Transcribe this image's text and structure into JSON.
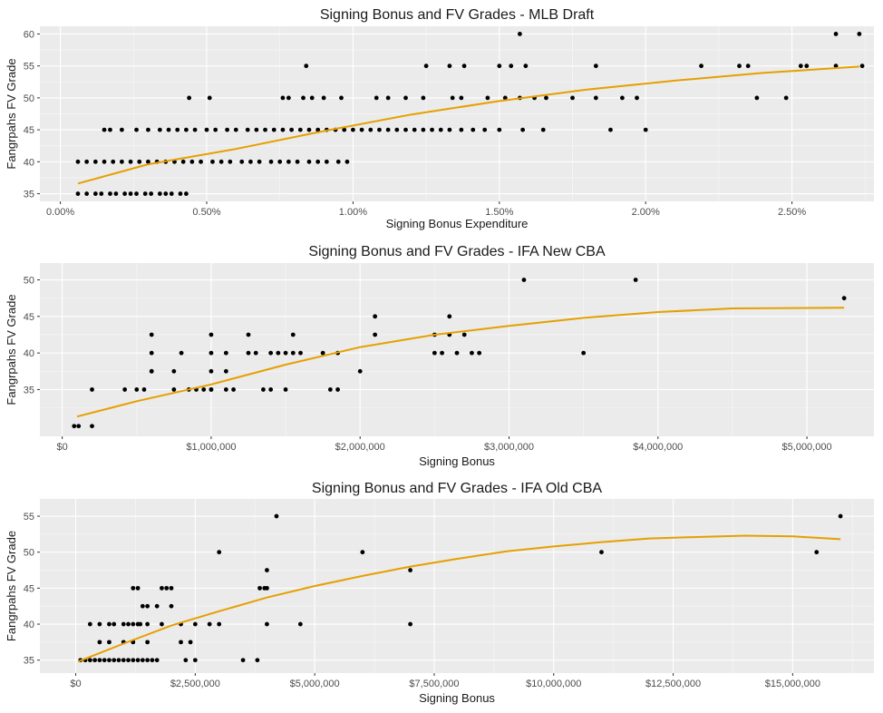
{
  "colors": {
    "panel": "#EBEBEB",
    "grid_major": "#FFFFFF",
    "grid_minor": "#F5F5F5",
    "point": "#000000",
    "trend": "#E69F00",
    "tick_text": "#4D4D4D"
  },
  "chart_data": [
    {
      "type": "scatter",
      "title": "Signing Bonus and FV Grades - MLB Draft",
      "xlabel": "Signing Bonus Expenditure",
      "ylabel": "Fangrpahs FV Grade",
      "xlim": [
        -0.0007,
        0.0278
      ],
      "ylim": [
        33.8,
        61.2
      ],
      "xticks": [
        0,
        0.005,
        0.01,
        0.015,
        0.02,
        0.025
      ],
      "xtick_labels": [
        "0.00%",
        "0.50%",
        "1.00%",
        "1.50%",
        "2.00%",
        "2.50%"
      ],
      "yticks": [
        35,
        40,
        45,
        50,
        55,
        60
      ],
      "ytick_labels": [
        "35",
        "40",
        "45",
        "50",
        "55",
        "60"
      ],
      "grid": true,
      "trend": {
        "x": [
          0.0006,
          0.003,
          0.006,
          0.009,
          0.012,
          0.015,
          0.018,
          0.021,
          0.024,
          0.0273
        ],
        "y": [
          36.6,
          39.6,
          42.0,
          44.8,
          47.4,
          49.5,
          51.3,
          52.7,
          53.9,
          54.9
        ]
      },
      "points": {
        "x": [
          0.0006,
          0.0009,
          0.0012,
          0.0014,
          0.0017,
          0.0019,
          0.0022,
          0.0024,
          0.0026,
          0.0029,
          0.0031,
          0.0034,
          0.0036,
          0.0038,
          0.0041,
          0.0043,
          0.0006,
          0.0009,
          0.0012,
          0.0015,
          0.0018,
          0.0021,
          0.0024,
          0.0027,
          0.003,
          0.0033,
          0.0036,
          0.0039,
          0.0042,
          0.0045,
          0.0048,
          0.0052,
          0.0055,
          0.0058,
          0.0062,
          0.0065,
          0.0068,
          0.0072,
          0.0075,
          0.0078,
          0.0081,
          0.0085,
          0.0088,
          0.0091,
          0.0095,
          0.0098,
          0.0015,
          0.0017,
          0.0021,
          0.0026,
          0.003,
          0.0034,
          0.0037,
          0.004,
          0.0043,
          0.0046,
          0.005,
          0.0053,
          0.0057,
          0.006,
          0.0064,
          0.0067,
          0.007,
          0.0073,
          0.0076,
          0.0079,
          0.0082,
          0.0085,
          0.0088,
          0.0091,
          0.0094,
          0.0097,
          0.01,
          0.0103,
          0.0106,
          0.0109,
          0.0112,
          0.0115,
          0.0118,
          0.0121,
          0.0124,
          0.0127,
          0.013,
          0.0133,
          0.0137,
          0.0141,
          0.0145,
          0.015,
          0.0158,
          0.0165,
          0.0188,
          0.02,
          0.0044,
          0.0051,
          0.0076,
          0.0078,
          0.0083,
          0.0086,
          0.009,
          0.0096,
          0.0108,
          0.0112,
          0.0118,
          0.0124,
          0.0134,
          0.0137,
          0.0146,
          0.0152,
          0.0157,
          0.0162,
          0.0166,
          0.0175,
          0.0183,
          0.0192,
          0.0197,
          0.0238,
          0.0248,
          0.0084,
          0.0125,
          0.0133,
          0.0138,
          0.015,
          0.0154,
          0.0159,
          0.0183,
          0.0219,
          0.0232,
          0.0235,
          0.0253,
          0.0255,
          0.0265,
          0.0274,
          0.0157,
          0.0265,
          0.0273
        ],
        "y": [
          35,
          35,
          35,
          35,
          35,
          35,
          35,
          35,
          35,
          35,
          35,
          35,
          35,
          35,
          35,
          35,
          40,
          40,
          40,
          40,
          40,
          40,
          40,
          40,
          40,
          40,
          40,
          40,
          40,
          40,
          40,
          40,
          40,
          40,
          40,
          40,
          40,
          40,
          40,
          40,
          40,
          40,
          40,
          40,
          40,
          40,
          45,
          45,
          45,
          45,
          45,
          45,
          45,
          45,
          45,
          45,
          45,
          45,
          45,
          45,
          45,
          45,
          45,
          45,
          45,
          45,
          45,
          45,
          45,
          45,
          45,
          45,
          45,
          45,
          45,
          45,
          45,
          45,
          45,
          45,
          45,
          45,
          45,
          45,
          45,
          45,
          45,
          45,
          45,
          45,
          45,
          45,
          50,
          50,
          50,
          50,
          50,
          50,
          50,
          50,
          50,
          50,
          50,
          50,
          50,
          50,
          50,
          50,
          50,
          50,
          50,
          50,
          50,
          50,
          50,
          50,
          50,
          55,
          55,
          55,
          55,
          55,
          55,
          55,
          55,
          55,
          55,
          55,
          55,
          55,
          55,
          55,
          60,
          60,
          60
        ]
      }
    },
    {
      "type": "scatter",
      "title": "Signing Bonus and FV Grades - IFA New CBA",
      "xlabel": "Signing Bonus",
      "ylabel": "Fangrpahs FV Grade",
      "xlim": [
        -150000,
        5450000
      ],
      "ylim": [
        28.6,
        52.3
      ],
      "xticks": [
        0,
        1000000,
        2000000,
        3000000,
        4000000,
        5000000
      ],
      "xtick_labels": [
        "$0",
        "$1,000,000",
        "$2,000,000",
        "$3,000,000",
        "$4,000,000",
        "$5,000,000"
      ],
      "yticks": [
        35,
        40,
        45,
        50
      ],
      "ytick_labels": [
        "35",
        "40",
        "45",
        "50"
      ],
      "grid": true,
      "trend": {
        "x": [
          100000,
          500000,
          1000000,
          1500000,
          2000000,
          2500000,
          3000000,
          3500000,
          4000000,
          4500000,
          5250000
        ],
        "y": [
          31.3,
          33.4,
          35.7,
          38.4,
          40.8,
          42.5,
          43.7,
          44.8,
          45.6,
          46.1,
          46.2
        ]
      },
      "points": {
        "x": [
          80000,
          110000,
          200000,
          200000,
          420000,
          500000,
          550000,
          600000,
          600000,
          600000,
          600000,
          750000,
          750000,
          800000,
          850000,
          900000,
          950000,
          1000000,
          1000000,
          1000000,
          1000000,
          1000000,
          1100000,
          1100000,
          1100000,
          1150000,
          1250000,
          1250000,
          1300000,
          1350000,
          1400000,
          1400000,
          1450000,
          1500000,
          1500000,
          1550000,
          1550000,
          1600000,
          1750000,
          1800000,
          1850000,
          1850000,
          2000000,
          2100000,
          2100000,
          2500000,
          2500000,
          2550000,
          2600000,
          2600000,
          2650000,
          2700000,
          2750000,
          2800000,
          3100000,
          3500000,
          3850000,
          5250000
        ],
        "y": [
          30,
          30,
          30,
          35,
          35,
          35,
          35,
          37.5,
          40,
          42.5,
          37.5,
          37.5,
          35,
          40,
          35,
          35,
          35,
          35,
          37.5,
          40,
          42.5,
          35,
          37.5,
          40,
          35,
          35,
          40,
          42.5,
          40,
          35,
          40,
          35,
          40,
          35,
          40,
          40,
          42.5,
          40,
          40,
          35,
          40,
          35,
          37.5,
          42.5,
          45,
          40,
          42.5,
          40,
          42.5,
          45,
          40,
          42.5,
          40,
          40,
          50,
          40,
          50,
          47.5
        ]
      }
    },
    {
      "type": "scatter",
      "title": "Signing Bonus and FV Grades - IFA Old CBA",
      "xlabel": "Signing Bonus",
      "ylabel": "Fangrpahs FV Grade",
      "xlim": [
        -750000,
        16700000
      ],
      "ylim": [
        33.2,
        57.4
      ],
      "xticks": [
        0,
        2500000,
        5000000,
        7500000,
        10000000,
        12500000,
        15000000
      ],
      "xtick_labels": [
        "$0",
        "$2,500,000",
        "$5,000,000",
        "$7,500,000",
        "$10,000,000",
        "$12,500,000",
        "$15,000,000"
      ],
      "yticks": [
        35,
        40,
        45,
        50,
        55
      ],
      "ytick_labels": [
        "35",
        "40",
        "45",
        "50",
        "55"
      ],
      "grid": true,
      "trend": {
        "x": [
          50000,
          1000000,
          2000000,
          3000000,
          4000000,
          5000000,
          6000000,
          7000000,
          8000000,
          9000000,
          10000000,
          11000000,
          12000000,
          13000000,
          14000000,
          15000000,
          16000000
        ],
        "y": [
          34.8,
          37.3,
          39.8,
          41.8,
          43.7,
          45.3,
          46.7,
          48.0,
          49.1,
          50.1,
          50.8,
          51.4,
          51.9,
          52.1,
          52.3,
          52.2,
          51.8
        ]
      },
      "points": {
        "x": [
          100000,
          200000,
          300000,
          400000,
          500000,
          600000,
          700000,
          800000,
          900000,
          1000000,
          1100000,
          1200000,
          1300000,
          1400000,
          1500000,
          1600000,
          1700000,
          2300000,
          2500000,
          3500000,
          3800000,
          300000,
          500000,
          700000,
          800000,
          1000000,
          1100000,
          1200000,
          1300000,
          1350000,
          1500000,
          1800000,
          2200000,
          2500000,
          2800000,
          3000000,
          4000000,
          4700000,
          7000000,
          500000,
          700000,
          1000000,
          1200000,
          1500000,
          2200000,
          2400000,
          1400000,
          1500000,
          1700000,
          2000000,
          1200000,
          1300000,
          1800000,
          1900000,
          2000000,
          3850000,
          3950000,
          4000000,
          4000000,
          7000000,
          3000000,
          6000000,
          11000000,
          15500000,
          4200000,
          16000000
        ],
        "y": [
          35,
          35,
          35,
          35,
          35,
          35,
          35,
          35,
          35,
          35,
          35,
          35,
          35,
          35,
          35,
          35,
          35,
          35,
          35,
          35,
          35,
          40,
          40,
          40,
          40,
          40,
          40,
          40,
          40,
          40,
          40,
          40,
          40,
          40,
          40,
          40,
          40,
          40,
          40,
          37.5,
          37.5,
          37.5,
          37.5,
          37.5,
          37.5,
          37.5,
          42.5,
          42.5,
          42.5,
          42.5,
          45,
          45,
          45,
          45,
          45,
          45,
          45,
          45,
          47.5,
          47.5,
          50,
          50,
          50,
          50,
          55,
          55
        ]
      }
    }
  ]
}
